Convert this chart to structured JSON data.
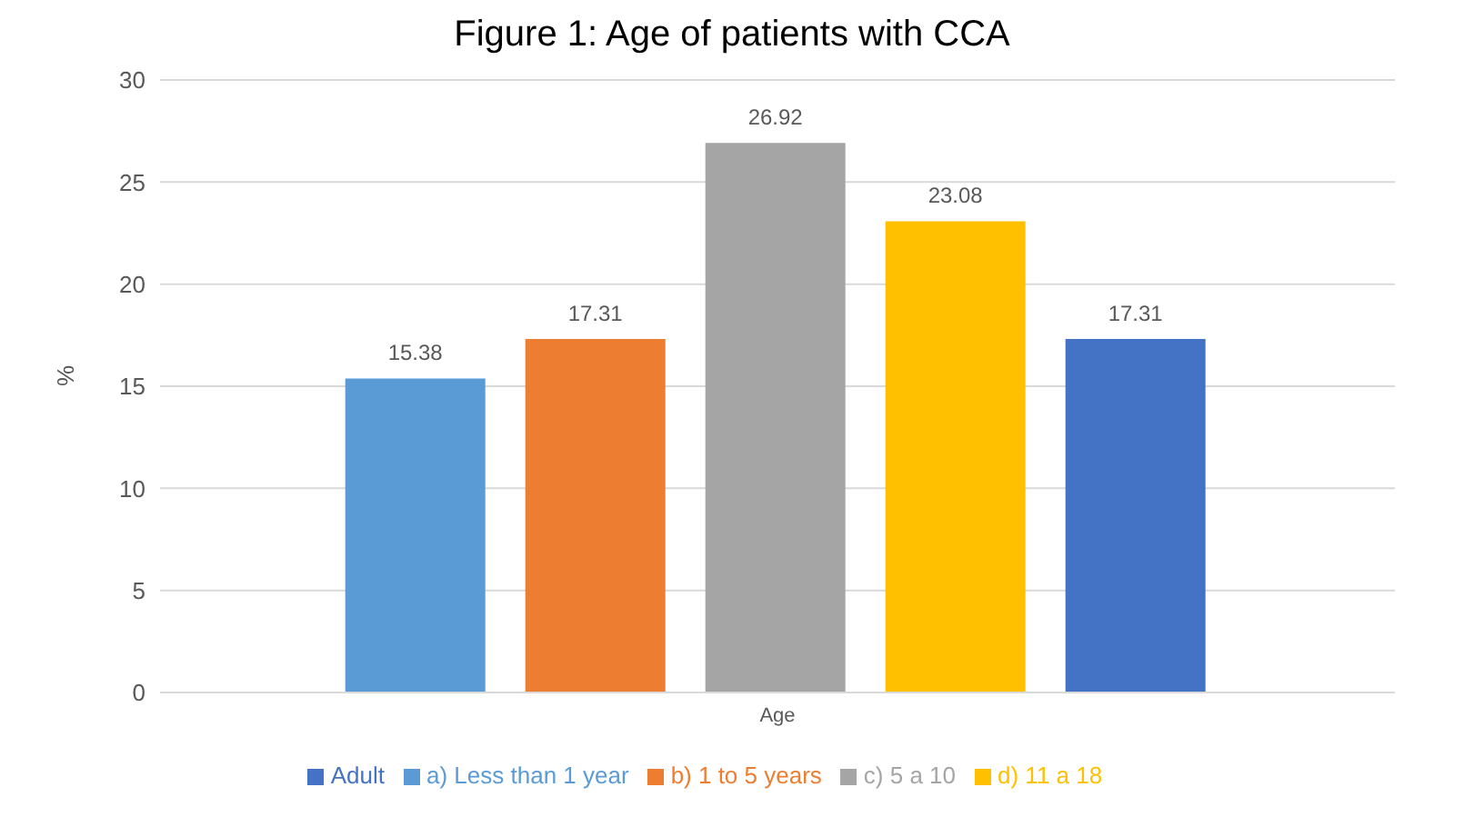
{
  "chart_data": {
    "type": "bar",
    "title": "Figure 1: Age of patients with CCA",
    "ylabel": "%",
    "categories": [
      "Age"
    ],
    "series": [
      {
        "name": "a) Less than 1 year",
        "color": "#5b9bd5",
        "values": [
          15.38
        ]
      },
      {
        "name": "b) 1 to 5 years",
        "color": "#ed7d31",
        "values": [
          17.31
        ]
      },
      {
        "name": "c) 5 a 10",
        "color": "#a5a5a5",
        "values": [
          26.92
        ]
      },
      {
        "name": "d) 11 a 18",
        "color": "#ffc000",
        "values": [
          23.08
        ]
      },
      {
        "name": "Adult",
        "color": "#4472c4",
        "values": [
          17.31
        ]
      }
    ],
    "ylim": [
      0,
      30
    ],
    "yticks": [
      0,
      5,
      10,
      15,
      20,
      25,
      30
    ],
    "grid": "y",
    "legend": "bottom",
    "data_labels": true
  }
}
